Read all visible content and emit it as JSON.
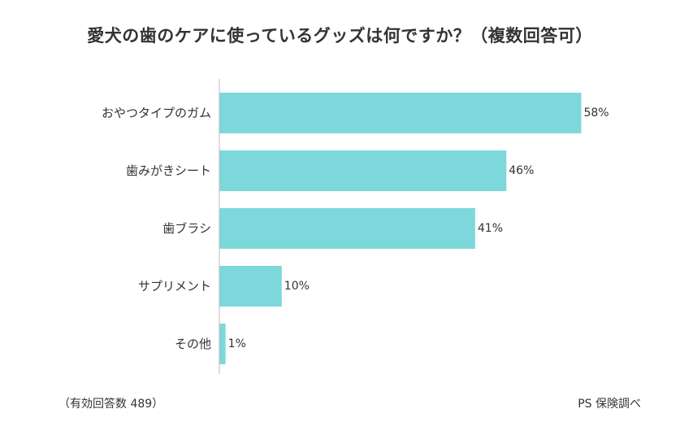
{
  "chart_data": {
    "type": "bar",
    "orientation": "horizontal",
    "title": "愛犬の歯のケアに使っているグッズは何ですか？（複数回答可）",
    "categories": [
      "おやつタイプのガム",
      "歯みがきシート",
      "歯ブラシ",
      "サプリメント",
      "その他"
    ],
    "values": [
      58,
      46,
      41,
      10,
      1
    ],
    "value_labels": [
      "58%",
      "46%",
      "41%",
      "10%",
      "1%"
    ],
    "unit": "%",
    "xlim": [
      0,
      100
    ],
    "xlabel": "",
    "ylabel": "",
    "grid": false,
    "legend": "none"
  },
  "footnotes": {
    "sample": "（有効回答数 489）",
    "source": "PS 保険調べ"
  },
  "colors": {
    "bar": "#7dd8db",
    "axis": "#bbbbbb",
    "text": "#333333"
  }
}
